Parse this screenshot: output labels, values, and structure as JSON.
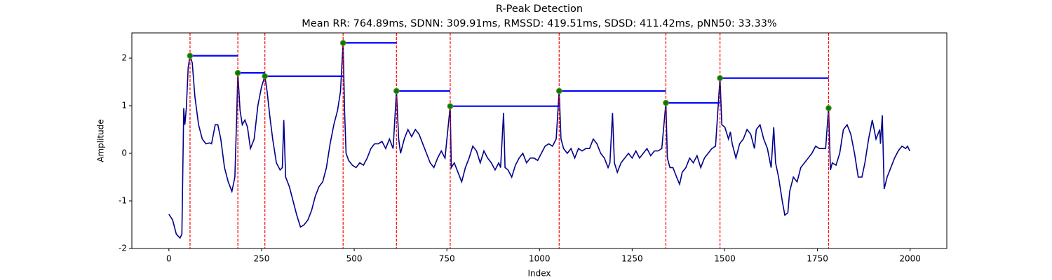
{
  "chart_data": {
    "type": "line",
    "title": "R-Peak Detection",
    "subtitle": "Mean RR: 764.89ms, SDNN: 309.91ms, RMSSD: 419.51ms, SDSD: 411.42ms, pNN50: 33.33%",
    "x_label": "Index",
    "y_label": "Amplitude",
    "xlim": [
      -100,
      2099
    ],
    "ylim": [
      -2.0,
      2.53
    ],
    "xticks": [
      0,
      250,
      500,
      750,
      1000,
      1250,
      1500,
      1750,
      2000
    ],
    "yticks": [
      -2,
      -1,
      0,
      1,
      2
    ],
    "signal": {
      "color": "#00008b",
      "x": [
        0,
        10,
        20,
        30,
        35,
        40,
        43,
        47,
        52,
        57,
        63,
        70,
        80,
        90,
        100,
        110,
        115,
        125,
        132,
        140,
        150,
        160,
        170,
        178,
        183,
        186,
        192,
        198,
        205,
        212,
        220,
        230,
        240,
        250,
        259,
        265,
        272,
        280,
        290,
        300,
        306,
        310,
        315,
        325,
        335,
        345,
        355,
        365,
        375,
        385,
        395,
        405,
        415,
        425,
        435,
        445,
        455,
        463,
        470,
        474,
        478,
        485,
        495,
        505,
        515,
        525,
        535,
        545,
        555,
        565,
        575,
        585,
        595,
        605,
        614,
        620,
        625,
        635,
        645,
        655,
        665,
        675,
        685,
        695,
        705,
        715,
        725,
        735,
        745,
        759,
        762,
        770,
        780,
        790,
        800,
        810,
        820,
        830,
        840,
        850,
        860,
        870,
        880,
        890,
        895,
        903,
        907,
        915,
        925,
        935,
        945,
        955,
        965,
        975,
        985,
        995,
        1005,
        1015,
        1025,
        1035,
        1045,
        1053,
        1058,
        1065,
        1075,
        1085,
        1095,
        1105,
        1115,
        1125,
        1135,
        1145,
        1155,
        1165,
        1175,
        1185,
        1190,
        1197,
        1202,
        1210,
        1220,
        1230,
        1240,
        1250,
        1260,
        1270,
        1280,
        1290,
        1300,
        1310,
        1320,
        1330,
        1341,
        1345,
        1352,
        1360,
        1370,
        1378,
        1385,
        1395,
        1405,
        1415,
        1425,
        1435,
        1445,
        1455,
        1465,
        1475,
        1487,
        1492,
        1500,
        1510,
        1515,
        1520,
        1530,
        1540,
        1550,
        1560,
        1570,
        1580,
        1585,
        1595,
        1605,
        1615,
        1625,
        1632,
        1637,
        1645,
        1655,
        1662,
        1670,
        1675,
        1685,
        1695,
        1705,
        1715,
        1725,
        1735,
        1745,
        1755,
        1765,
        1772,
        1780,
        1785,
        1790,
        1800,
        1810,
        1820,
        1830,
        1840,
        1850,
        1860,
        1870,
        1878,
        1888,
        1898,
        1908,
        1918,
        1920,
        1925,
        1930,
        1938,
        1948,
        1958,
        1968,
        1978,
        1988,
        1993,
        1999
      ],
      "values": [
        -1.28,
        -1.4,
        -1.7,
        -1.78,
        -1.7,
        0.95,
        0.6,
        0.95,
        1.8,
        2.05,
        1.9,
        1.2,
        0.6,
        0.3,
        0.2,
        0.22,
        0.2,
        0.6,
        0.6,
        0.3,
        -0.3,
        -0.6,
        -0.8,
        -0.5,
        0.8,
        1.69,
        0.9,
        0.6,
        0.7,
        0.55,
        0.1,
        0.3,
        1.0,
        1.4,
        1.62,
        1.3,
        0.8,
        0.3,
        -0.2,
        -0.35,
        -0.3,
        0.7,
        -0.5,
        -0.7,
        -1.0,
        -1.3,
        -1.55,
        -1.5,
        -1.4,
        -1.2,
        -0.9,
        -0.7,
        -0.6,
        -0.3,
        0.2,
        0.6,
        0.9,
        1.3,
        2.32,
        0.9,
        0.0,
        -0.15,
        -0.25,
        -0.3,
        -0.2,
        -0.25,
        -0.1,
        0.1,
        0.2,
        0.2,
        0.25,
        0.1,
        0.3,
        0.1,
        1.31,
        0.3,
        0.0,
        0.3,
        0.5,
        0.35,
        0.5,
        0.4,
        0.2,
        0.0,
        -0.2,
        -0.3,
        -0.1,
        0.05,
        -0.1,
        0.99,
        -0.3,
        -0.2,
        -0.4,
        -0.6,
        -0.3,
        -0.1,
        0.15,
        0.05,
        -0.2,
        0.05,
        -0.1,
        -0.2,
        -0.35,
        -0.2,
        -0.3,
        0.85,
        -0.3,
        -0.35,
        -0.5,
        -0.25,
        -0.1,
        0.0,
        -0.2,
        -0.1,
        -0.1,
        -0.15,
        0.0,
        0.15,
        0.2,
        0.15,
        0.3,
        1.31,
        0.3,
        0.1,
        0.0,
        0.1,
        -0.1,
        0.1,
        0.05,
        0.1,
        0.1,
        0.3,
        0.2,
        0.0,
        -0.1,
        -0.3,
        -0.2,
        0.85,
        -0.2,
        -0.4,
        -0.2,
        -0.1,
        0.0,
        -0.1,
        0.05,
        -0.1,
        0.0,
        0.1,
        -0.05,
        0.05,
        0.05,
        0.1,
        1.06,
        -0.1,
        -0.3,
        -0.3,
        -0.5,
        -0.65,
        -0.4,
        -0.3,
        -0.1,
        -0.2,
        -0.05,
        -0.3,
        -0.1,
        0.0,
        0.1,
        0.15,
        1.58,
        0.6,
        0.55,
        0.3,
        0.45,
        0.2,
        -0.1,
        0.2,
        0.3,
        0.5,
        0.4,
        0.1,
        0.5,
        0.6,
        0.3,
        0.1,
        -0.3,
        0.55,
        -0.2,
        -0.5,
        -1.0,
        -1.3,
        -1.25,
        -0.8,
        -0.5,
        -0.6,
        -0.3,
        -0.2,
        -0.1,
        0.0,
        0.15,
        0.1,
        0.1,
        0.1,
        0.95,
        -0.35,
        -0.2,
        -0.25,
        0.0,
        0.5,
        0.6,
        0.4,
        0.0,
        -0.5,
        -0.5,
        -0.2,
        0.3,
        0.7,
        0.3,
        0.5,
        0.2,
        0.8,
        -0.75,
        -0.5,
        -0.3,
        -0.1,
        0.05,
        0.15,
        0.1,
        0.15,
        0.05
      ]
    },
    "peaks": {
      "color": "green",
      "x": [
        57,
        186,
        259,
        470,
        614,
        759,
        1053,
        1341,
        1487,
        1780
      ],
      "values": [
        2.05,
        1.69,
        1.62,
        2.32,
        1.31,
        0.99,
        1.31,
        1.06,
        1.58,
        0.95
      ]
    },
    "peak_line_color": "red",
    "interval_line_color": "blue"
  }
}
